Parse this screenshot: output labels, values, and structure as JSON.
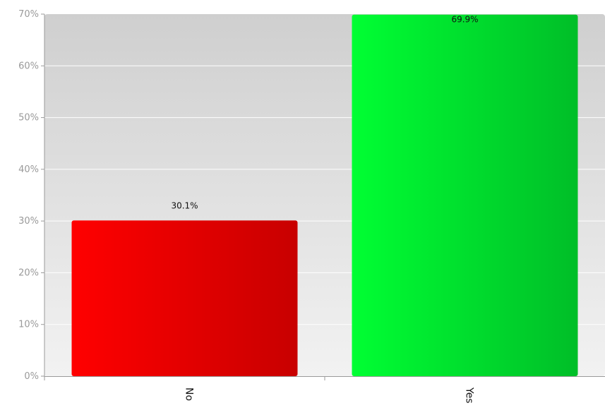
{
  "chart_data": {
    "type": "bar",
    "categories": [
      "No",
      "Yes"
    ],
    "values": [
      30.1,
      69.9
    ],
    "value_labels": [
      "30.1%",
      "69.9%"
    ],
    "ylim": [
      0,
      70
    ],
    "yticks": [
      {
        "value": 0,
        "label": "0%"
      },
      {
        "value": 10,
        "label": "10%"
      },
      {
        "value": 20,
        "label": "20%"
      },
      {
        "value": 30,
        "label": "30%"
      },
      {
        "value": 40,
        "label": "40%"
      },
      {
        "value": 50,
        "label": "50%"
      },
      {
        "value": 60,
        "label": "60%"
      },
      {
        "value": 70,
        "label": "70%"
      }
    ],
    "grid": true,
    "legend": false,
    "colors": {
      "bars": [
        {
          "start": "#ff0000",
          "end": "#c80000"
        },
        {
          "start": "#00ff33",
          "end": "#00be28"
        }
      ],
      "plot_top": "#cfcfcf",
      "plot_bottom": "#f2f2f2",
      "gridline": "#ffffff"
    }
  }
}
